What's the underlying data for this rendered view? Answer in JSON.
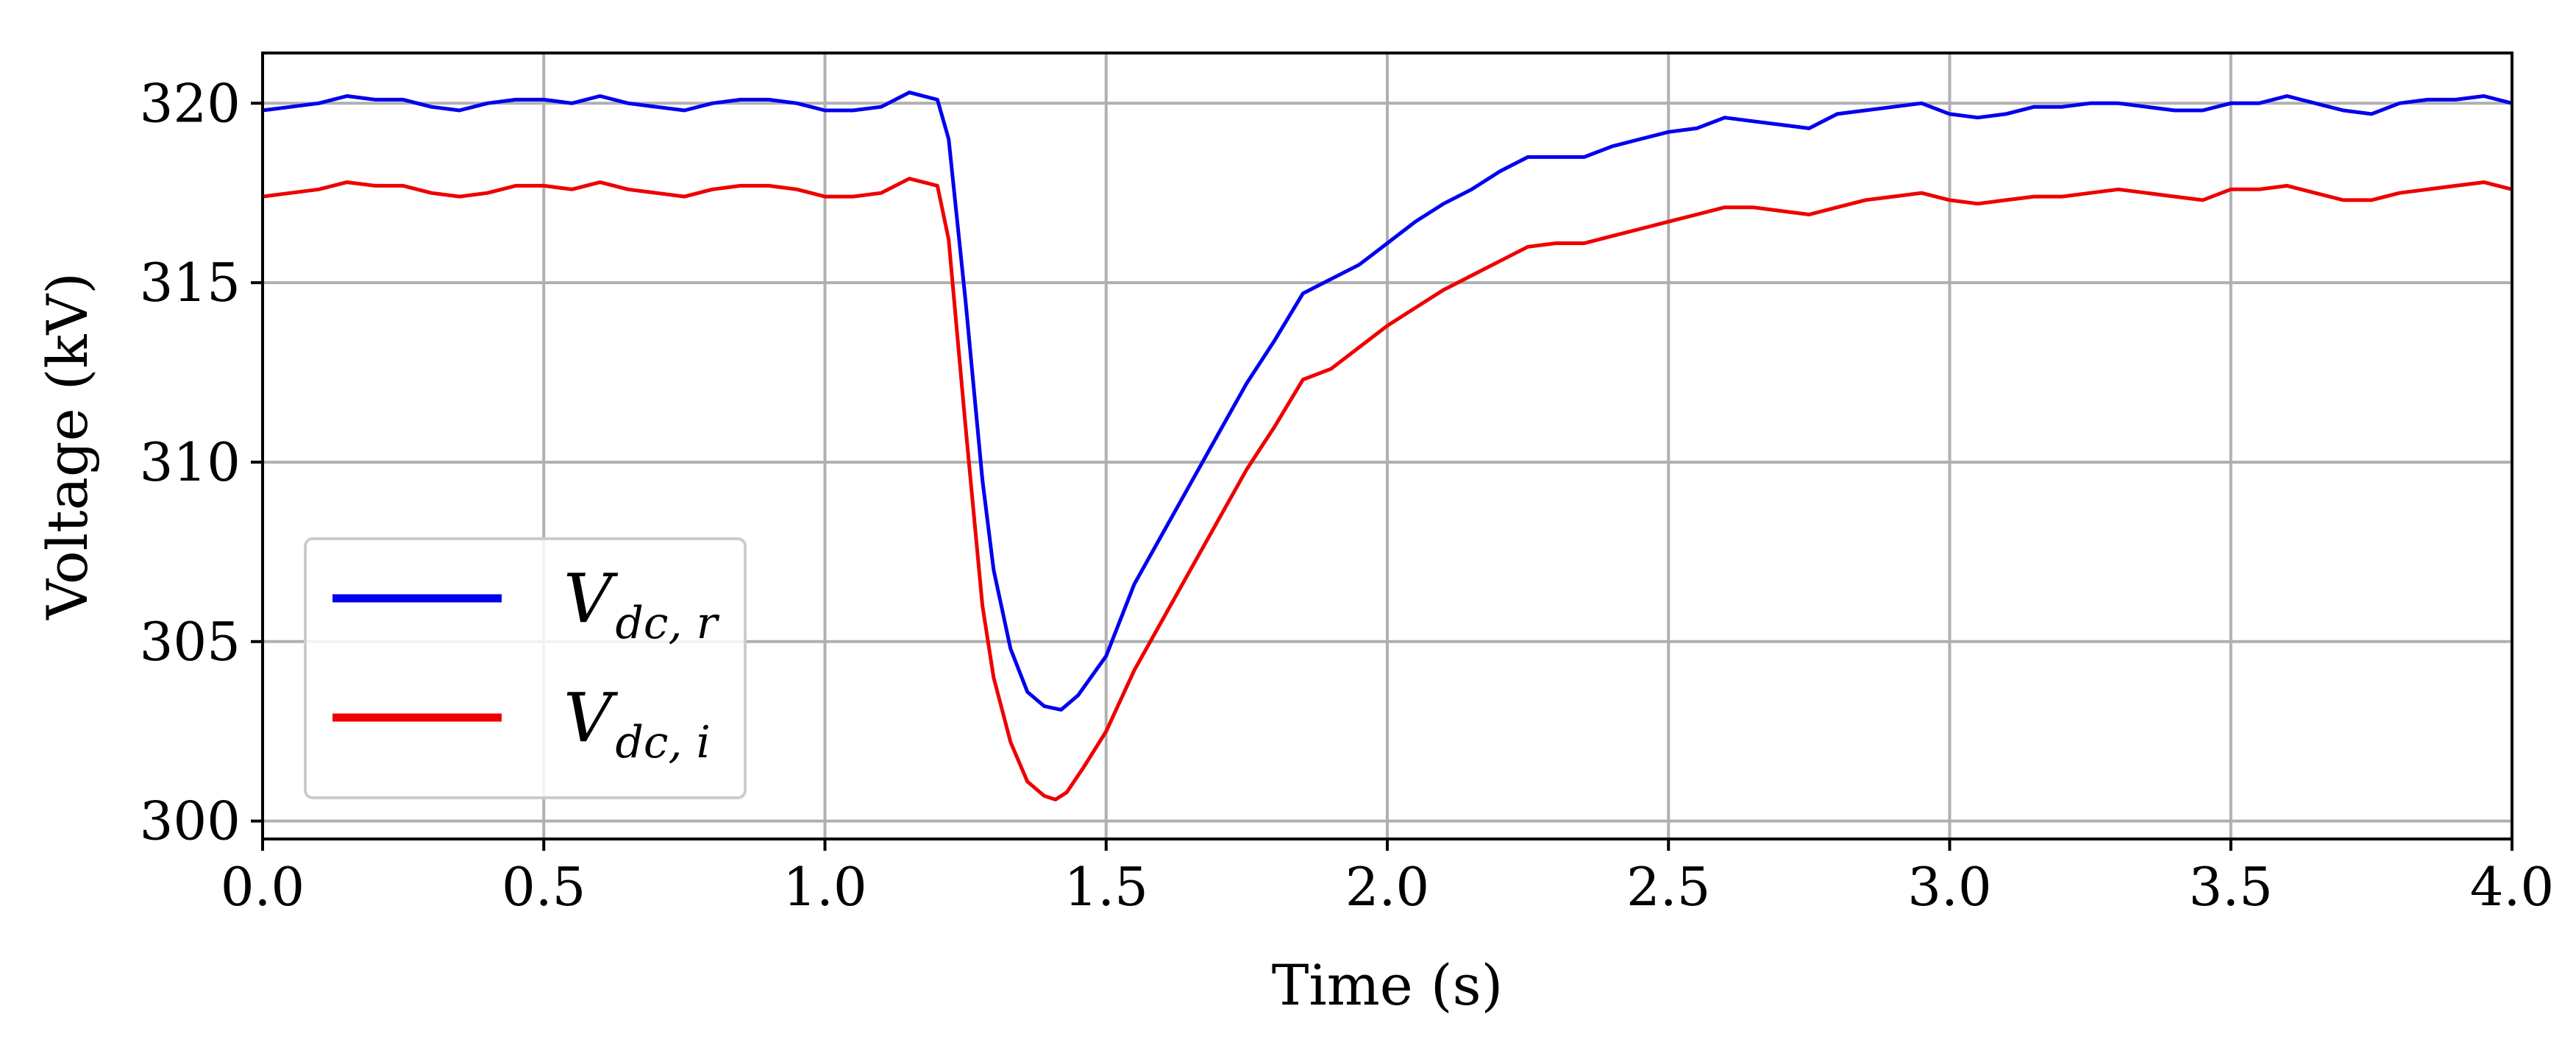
{
  "chart_data": {
    "type": "line",
    "title": "",
    "xlabel": "Time (s)",
    "ylabel": "Voltage (kV)",
    "xlim": [
      0.0,
      4.0
    ],
    "ylim": [
      299.5,
      321.4
    ],
    "xticks": [
      "0.0",
      "0.5",
      "1.0",
      "1.5",
      "2.0",
      "2.5",
      "3.0",
      "3.5",
      "4.0"
    ],
    "xtick_values": [
      0.0,
      0.5,
      1.0,
      1.5,
      2.0,
      2.5,
      3.0,
      3.5,
      4.0
    ],
    "yticks": [
      "300",
      "305",
      "310",
      "315",
      "320"
    ],
    "ytick_values": [
      300,
      305,
      310,
      315,
      320
    ],
    "grid": true,
    "legend_position": "bottom-left",
    "series": [
      {
        "name": "V",
        "name_subscript": "dc, r",
        "color": "#0000ee",
        "x": [
          0.0,
          0.05,
          0.1,
          0.15,
          0.2,
          0.25,
          0.3,
          0.35,
          0.4,
          0.45,
          0.5,
          0.55,
          0.6,
          0.65,
          0.7,
          0.75,
          0.8,
          0.85,
          0.9,
          0.95,
          1.0,
          1.05,
          1.1,
          1.15,
          1.2,
          1.22,
          1.25,
          1.28,
          1.3,
          1.33,
          1.36,
          1.39,
          1.42,
          1.45,
          1.5,
          1.55,
          1.6,
          1.65,
          1.7,
          1.75,
          1.8,
          1.85,
          1.9,
          1.95,
          2.0,
          2.05,
          2.1,
          2.15,
          2.2,
          2.25,
          2.3,
          2.35,
          2.4,
          2.45,
          2.5,
          2.55,
          2.6,
          2.65,
          2.7,
          2.75,
          2.8,
          2.85,
          2.9,
          2.95,
          3.0,
          3.05,
          3.1,
          3.15,
          3.2,
          3.25,
          3.3,
          3.35,
          3.4,
          3.45,
          3.5,
          3.55,
          3.6,
          3.65,
          3.7,
          3.75,
          3.8,
          3.85,
          3.9,
          3.95,
          4.0
        ],
        "y": [
          319.8,
          319.9,
          320.0,
          320.2,
          320.1,
          320.1,
          319.9,
          319.8,
          320.0,
          320.1,
          320.1,
          320.0,
          320.2,
          320.0,
          319.9,
          319.8,
          320.0,
          320.1,
          320.1,
          320.0,
          319.8,
          319.8,
          319.9,
          320.3,
          320.1,
          319.0,
          314.5,
          309.5,
          307.0,
          304.8,
          303.6,
          303.2,
          303.1,
          303.5,
          304.6,
          306.6,
          308.0,
          309.4,
          310.8,
          312.2,
          313.4,
          314.7,
          315.1,
          315.5,
          316.1,
          316.7,
          317.2,
          317.6,
          318.1,
          318.5,
          318.5,
          318.5,
          318.8,
          319.0,
          319.2,
          319.3,
          319.6,
          319.5,
          319.4,
          319.3,
          319.7,
          319.8,
          319.9,
          320.0,
          319.7,
          319.6,
          319.7,
          319.9,
          319.9,
          320.0,
          320.0,
          319.9,
          319.8,
          319.8,
          320.0,
          320.0,
          320.2,
          320.0,
          319.8,
          319.7,
          320.0,
          320.1,
          320.1,
          320.2,
          320.0
        ]
      },
      {
        "name": "V",
        "name_subscript": "dc, i",
        "color": "#ee0000",
        "x": [
          0.0,
          0.05,
          0.1,
          0.15,
          0.2,
          0.25,
          0.3,
          0.35,
          0.4,
          0.45,
          0.5,
          0.55,
          0.6,
          0.65,
          0.7,
          0.75,
          0.8,
          0.85,
          0.9,
          0.95,
          1.0,
          1.05,
          1.1,
          1.15,
          1.2,
          1.22,
          1.25,
          1.28,
          1.3,
          1.33,
          1.36,
          1.39,
          1.41,
          1.43,
          1.46,
          1.5,
          1.55,
          1.6,
          1.65,
          1.7,
          1.75,
          1.8,
          1.85,
          1.9,
          1.95,
          2.0,
          2.05,
          2.1,
          2.15,
          2.2,
          2.25,
          2.3,
          2.35,
          2.4,
          2.45,
          2.5,
          2.55,
          2.6,
          2.65,
          2.7,
          2.75,
          2.8,
          2.85,
          2.9,
          2.95,
          3.0,
          3.05,
          3.1,
          3.15,
          3.2,
          3.25,
          3.3,
          3.35,
          3.4,
          3.45,
          3.5,
          3.55,
          3.6,
          3.65,
          3.7,
          3.75,
          3.8,
          3.85,
          3.9,
          3.95,
          4.0
        ],
        "y": [
          317.4,
          317.5,
          317.6,
          317.8,
          317.7,
          317.7,
          317.5,
          317.4,
          317.5,
          317.7,
          317.7,
          317.6,
          317.8,
          317.6,
          317.5,
          317.4,
          317.6,
          317.7,
          317.7,
          317.6,
          317.4,
          317.4,
          317.5,
          317.9,
          317.7,
          316.2,
          311.0,
          306.0,
          304.0,
          302.2,
          301.1,
          300.7,
          300.6,
          300.8,
          301.5,
          302.5,
          304.2,
          305.6,
          307.0,
          308.4,
          309.8,
          311.0,
          312.3,
          312.6,
          313.2,
          313.8,
          314.3,
          314.8,
          315.2,
          315.6,
          316.0,
          316.1,
          316.1,
          316.3,
          316.5,
          316.7,
          316.9,
          317.1,
          317.1,
          317.0,
          316.9,
          317.1,
          317.3,
          317.4,
          317.5,
          317.3,
          317.2,
          317.3,
          317.4,
          317.4,
          317.5,
          317.6,
          317.5,
          317.4,
          317.3,
          317.6,
          317.6,
          317.7,
          317.5,
          317.3,
          317.3,
          317.5,
          317.6,
          317.7,
          317.8,
          317.6
        ]
      }
    ]
  }
}
